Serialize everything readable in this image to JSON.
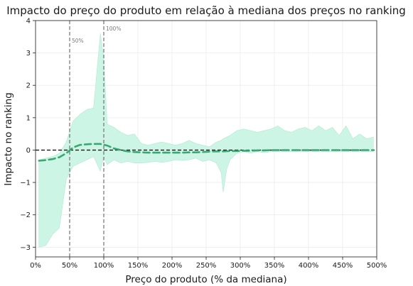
{
  "chart_data": {
    "type": "line",
    "title": "Impacto do preço do produto em relação à mediana dos preços no ranking",
    "xlabel": "Preço do produto (% da mediana)",
    "ylabel": "Impacto no ranking",
    "xlim": [
      0,
      500
    ],
    "ylim": [
      -3.3,
      4
    ],
    "x_ticks": [
      0,
      50,
      100,
      150,
      200,
      250,
      300,
      350,
      400,
      450,
      500
    ],
    "x_tick_labels": [
      "0%",
      "50%",
      "100%",
      "150%",
      "200%",
      "250%",
      "300%",
      "350%",
      "400%",
      "450%",
      "500%"
    ],
    "y_ticks": [
      -3,
      -2,
      -1,
      0,
      1,
      2,
      3,
      4
    ],
    "y_tick_labels": [
      "−3",
      "−2",
      "−1",
      "0",
      "1",
      "2",
      "3",
      "4"
    ],
    "grid": true,
    "colors": {
      "band_fill": "#cdf5e6",
      "band_edge": "#aeead3",
      "mean_line": "#3aa872",
      "reference_line": "#000000",
      "marker_lines": "#707070"
    },
    "reference_line": {
      "y": 0,
      "style": "dashed"
    },
    "vertical_markers": [
      {
        "x": 50,
        "label": "50%"
      },
      {
        "x": 100,
        "label": "100%"
      }
    ],
    "series": [
      {
        "style": "dashed",
        "x": [
          5,
          15,
          25,
          35,
          45,
          55,
          65,
          75,
          85,
          95,
          105,
          115,
          125,
          135,
          145,
          155,
          165,
          175,
          185,
          195,
          205,
          215,
          225,
          235,
          245,
          255,
          265,
          275,
          285,
          295,
          305,
          315,
          325,
          335,
          345,
          355,
          365,
          375,
          385,
          395,
          405,
          415,
          425,
          435,
          445,
          455,
          465,
          475,
          485,
          495
        ],
        "y": [
          -0.33,
          -0.31,
          -0.28,
          -0.22,
          -0.1,
          0.08,
          0.16,
          0.18,
          0.19,
          0.19,
          0.14,
          0.05,
          0.0,
          -0.04,
          -0.06,
          -0.07,
          -0.08,
          -0.08,
          -0.08,
          -0.08,
          -0.08,
          -0.08,
          -0.07,
          -0.07,
          -0.06,
          -0.05,
          -0.04,
          -0.04,
          -0.03,
          -0.03,
          -0.02,
          -0.02,
          -0.01,
          -0.01,
          0.0,
          0.0,
          0.0,
          0.0,
          0.0,
          0.0,
          0.0,
          0.0,
          0.0,
          0.0,
          0.0,
          0.0,
          0.0,
          0.0,
          0.0,
          0.0
        ]
      }
    ],
    "band": {
      "x": [
        5,
        15,
        25,
        35,
        45,
        55,
        65,
        75,
        85,
        95,
        100,
        105,
        115,
        125,
        135,
        145,
        155,
        165,
        175,
        185,
        195,
        205,
        215,
        225,
        235,
        245,
        255,
        265,
        272,
        275,
        280,
        285,
        295,
        305,
        315,
        325,
        335,
        345,
        355,
        365,
        375,
        385,
        395,
        405,
        415,
        425,
        435,
        445,
        455,
        465,
        475,
        485,
        495
      ],
      "upper": [
        -0.3,
        -0.25,
        -0.2,
        -0.1,
        0.25,
        0.9,
        1.1,
        1.25,
        1.3,
        3.6,
        2.8,
        0.8,
        0.7,
        0.55,
        0.45,
        0.5,
        0.2,
        0.15,
        0.2,
        0.25,
        0.2,
        0.15,
        0.2,
        0.3,
        0.2,
        0.15,
        0.1,
        0.25,
        0.3,
        0.35,
        0.4,
        0.45,
        0.6,
        0.65,
        0.6,
        0.55,
        0.6,
        0.65,
        0.75,
        0.6,
        0.55,
        0.65,
        0.7,
        0.6,
        0.75,
        0.6,
        0.7,
        0.45,
        0.75,
        0.35,
        0.5,
        0.35,
        0.4
      ],
      "lower": [
        -3.0,
        -2.95,
        -2.6,
        -2.4,
        -0.9,
        -0.5,
        -0.4,
        -0.3,
        -0.2,
        -0.65,
        -0.2,
        -0.45,
        -0.3,
        -0.4,
        -0.35,
        -0.4,
        -0.4,
        -0.38,
        -0.35,
        -0.38,
        -0.35,
        -0.3,
        -0.32,
        -0.3,
        -0.25,
        -0.35,
        -0.3,
        -0.4,
        -0.7,
        -1.3,
        -0.6,
        -0.3,
        -0.1,
        -0.05,
        -0.1,
        -0.05,
        -0.08,
        -0.05,
        -0.05,
        -0.05,
        -0.05,
        -0.05,
        -0.05,
        -0.05,
        -0.05,
        -0.05,
        -0.05,
        -0.05,
        -0.05,
        -0.05,
        -0.05,
        -0.05,
        -0.05
      ]
    }
  }
}
